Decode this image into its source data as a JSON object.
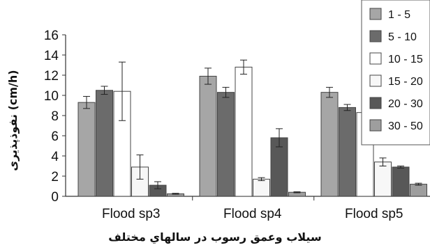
{
  "chart_data": {
    "type": "bar",
    "categories": [
      "Flood sp3",
      "Flood sp4",
      "Flood sp5"
    ],
    "series": [
      {
        "name": "1 - 5",
        "color": "#a6a6a6",
        "values": [
          9.3,
          11.9,
          10.3
        ],
        "errors": [
          0.6,
          0.8,
          0.5
        ]
      },
      {
        "name": "5 - 10",
        "color": "#6b6b6b",
        "values": [
          10.5,
          10.3,
          8.8
        ],
        "errors": [
          0.4,
          0.5,
          0.3
        ]
      },
      {
        "name": "10 - 15",
        "color": "#ffffff",
        "values": [
          10.4,
          12.8,
          8.3
        ],
        "errors": [
          2.9,
          0.7,
          0.3
        ]
      },
      {
        "name": "15 - 20",
        "color": "#f7f7f7",
        "values": [
          2.9,
          1.7,
          3.4
        ],
        "errors": [
          1.2,
          0.15,
          0.4
        ]
      },
      {
        "name": "20 - 30",
        "color": "#585858",
        "values": [
          1.1,
          5.8,
          2.9
        ],
        "errors": [
          0.35,
          0.9,
          0.1
        ]
      },
      {
        "name": "30 - 50",
        "color": "#9e9e9e",
        "values": [
          0.25,
          0.4,
          1.2
        ],
        "errors": [
          0.05,
          0.05,
          0.1
        ]
      }
    ],
    "ylabel": "نفوذپذیری (cm/h)",
    "xlabel": "سيلاب وعمق رسوب در سالهاي مختلف",
    "ylim": [
      0,
      16
    ],
    "yticks": [
      "0",
      "2",
      "4",
      "6",
      "8",
      "10",
      "12",
      "14",
      "16"
    ],
    "grid": false,
    "legend_placement": "right"
  }
}
